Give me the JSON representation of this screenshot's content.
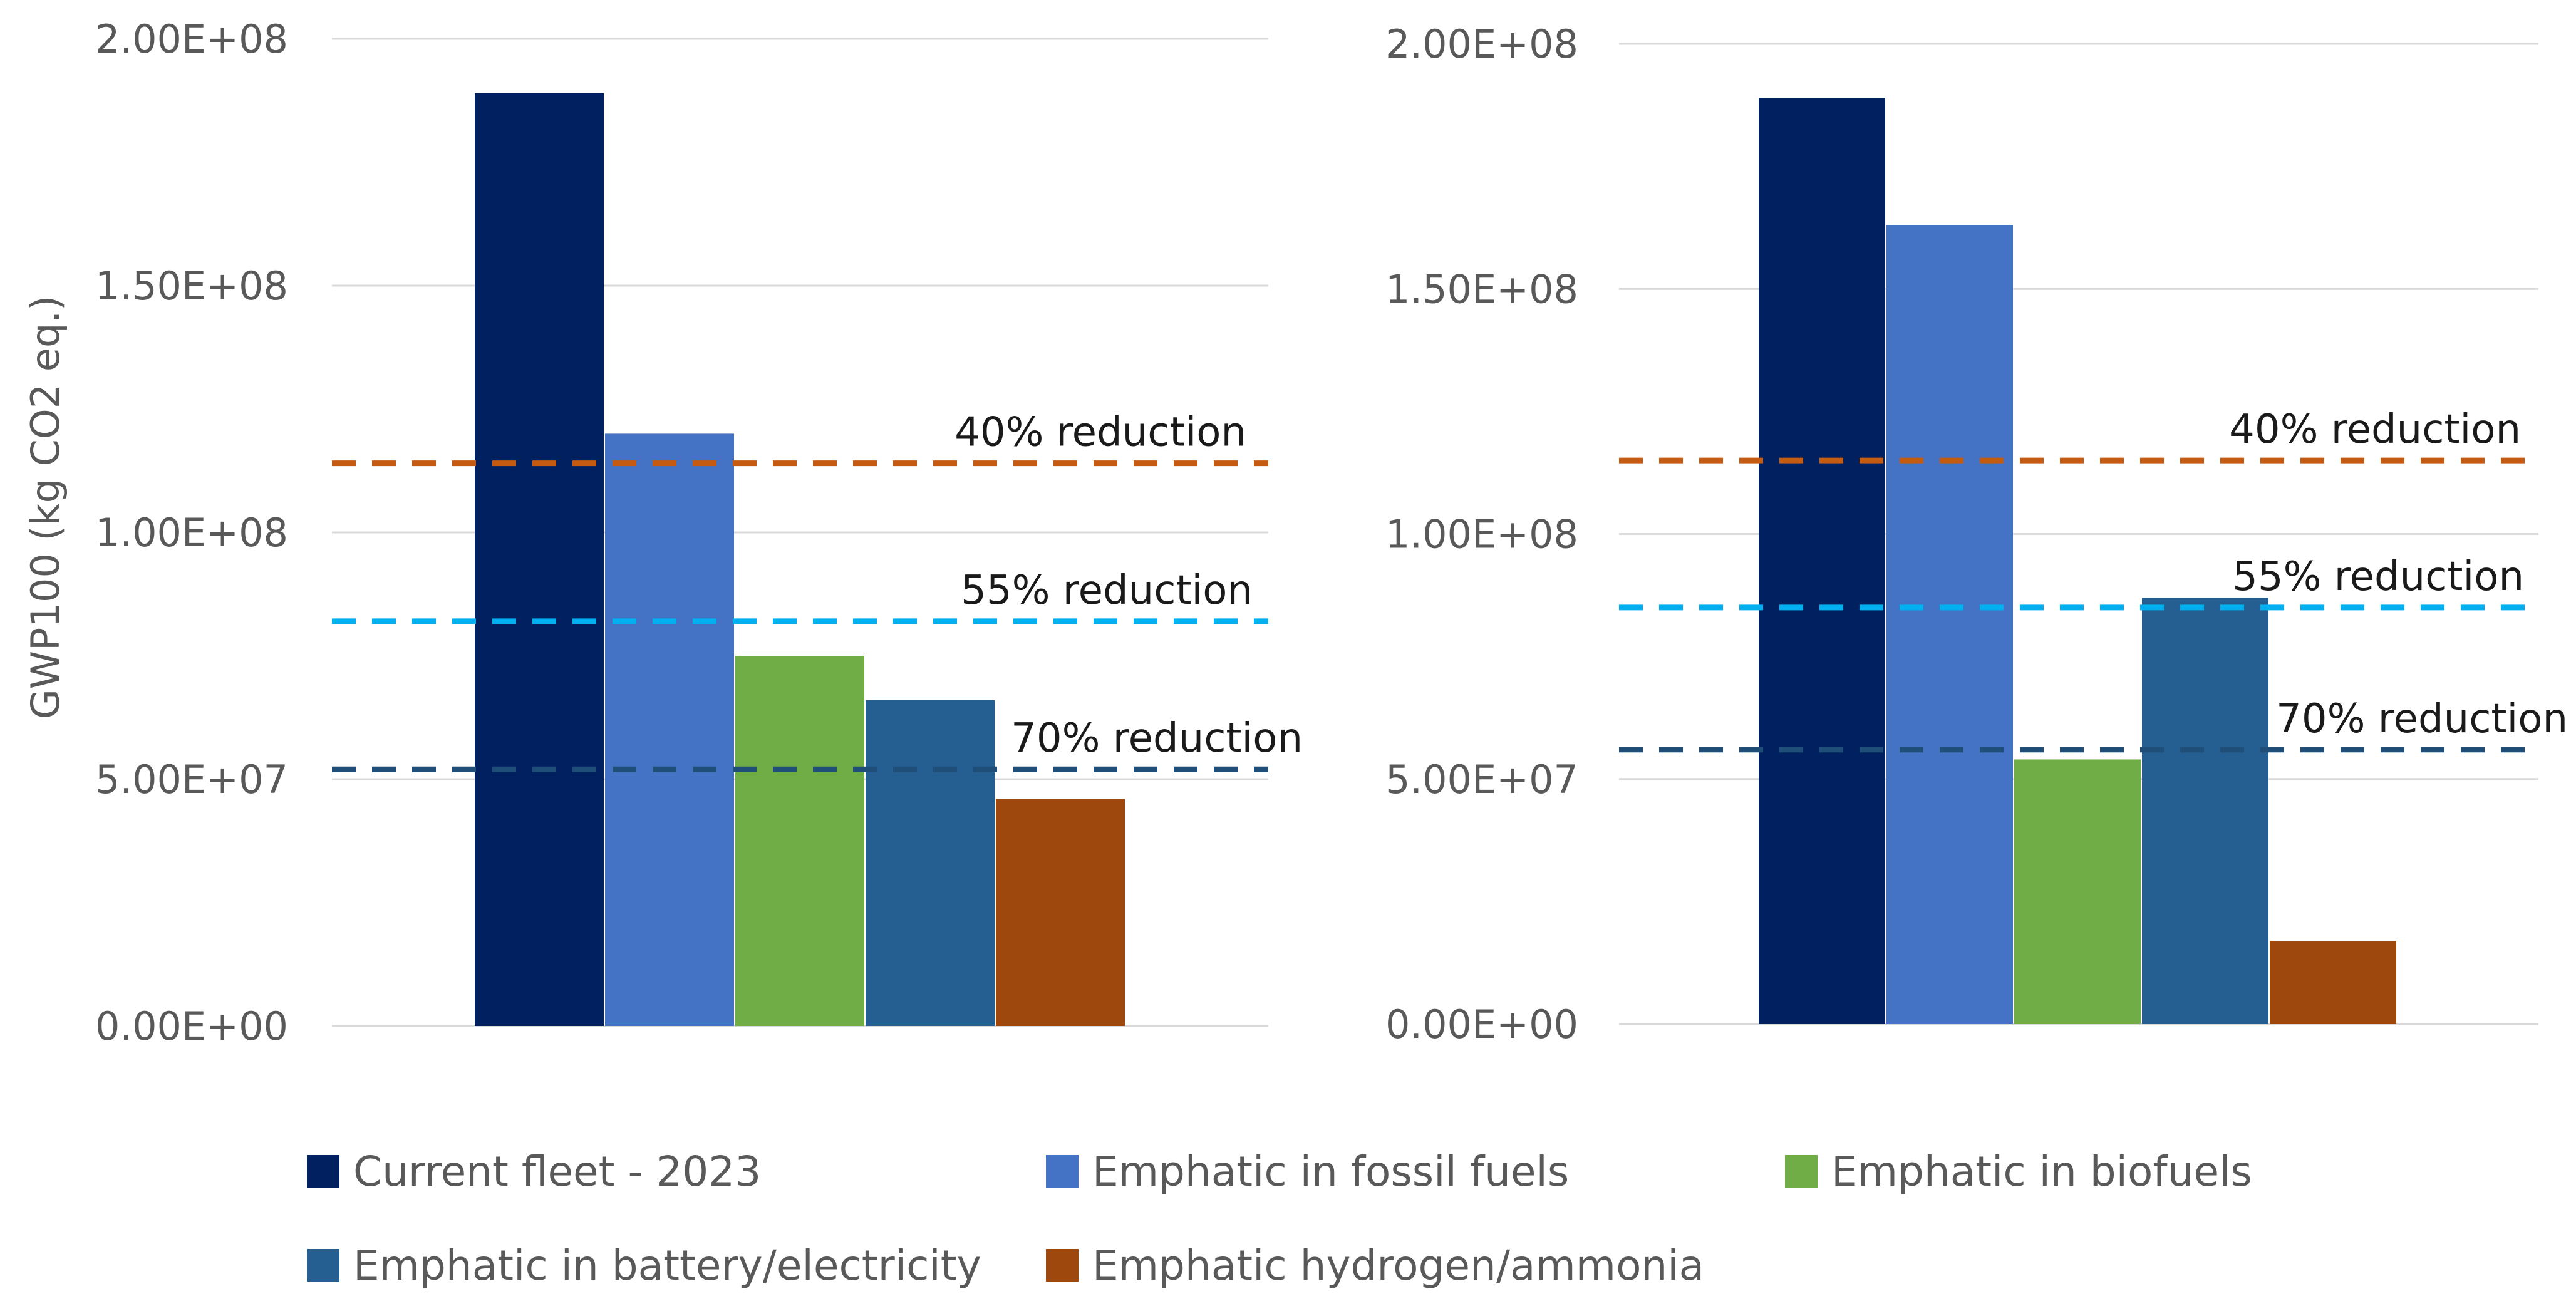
{
  "chart_data": [
    {
      "type": "bar",
      "title": "",
      "xlabel": "",
      "ylabel": "GWP100 (kg CO2 eq.)",
      "ylim": [
        0,
        200000000
      ],
      "yticks": [
        "0.00E+00",
        "5.00E+07",
        "1.00E+08",
        "1.50E+08",
        "2.00E+08"
      ],
      "series": [
        {
          "name": "Current fleet - 2023",
          "values": [
            189000000
          ]
        },
        {
          "name": "Emphatic in fossil fuels",
          "values": [
            120000000
          ]
        },
        {
          "name": "Emphatic in biofuels",
          "values": [
            75000000
          ]
        },
        {
          "name": "Emphatic in battery/electricity",
          "values": [
            66000000
          ]
        },
        {
          "name": "Emphatic hydrogen/ammonia",
          "values": [
            46000000
          ]
        }
      ],
      "reference_lines": [
        {
          "label": "40% reduction",
          "value": 114000000,
          "color": "#c55a11"
        },
        {
          "label": "55% reduction",
          "value": 82000000,
          "color": "#00b0f0"
        },
        {
          "label": "70% reduction",
          "value": 52000000,
          "color": "#1f4e79"
        }
      ]
    },
    {
      "type": "bar",
      "title": "",
      "xlabel": "",
      "ylabel": "",
      "ylim": [
        0,
        200000000
      ],
      "yticks": [
        "0.00E+00",
        "5.00E+07",
        "1.00E+08",
        "1.50E+08",
        "2.00E+08"
      ],
      "series": [
        {
          "name": "Current fleet - 2023",
          "values": [
            189000000
          ]
        },
        {
          "name": "Emphatic in fossil fuels",
          "values": [
            163000000
          ]
        },
        {
          "name": "Emphatic in biofuels",
          "values": [
            54000000
          ]
        },
        {
          "name": "Emphatic in battery/electricity",
          "values": [
            87000000
          ]
        },
        {
          "name": "Emphatic hydrogen/ammonia",
          "values": [
            17000000
          ]
        }
      ],
      "reference_lines": [
        {
          "label": "40% reduction",
          "value": 115000000,
          "color": "#c55a11"
        },
        {
          "label": "55% reduction",
          "value": 85000000,
          "color": "#00b0f0"
        },
        {
          "label": "70% reduction",
          "value": 56000000,
          "color": "#1f4e79"
        }
      ]
    }
  ],
  "legend": [
    {
      "label": "Current fleet - 2023",
      "color": "#002060"
    },
    {
      "label": "Emphatic in fossil fuels",
      "color": "#4472c4"
    },
    {
      "label": "Emphatic in biofuels",
      "color": "#70ad47"
    },
    {
      "label": "Emphatic in battery/electricity",
      "color": "#255e91"
    },
    {
      "label": "Emphatic hydrogen/ammonia",
      "color": "#9e480e"
    }
  ],
  "colors": {
    "series": [
      "#002060",
      "#4472c4",
      "#70ad47",
      "#255e91",
      "#9e480e"
    ]
  }
}
